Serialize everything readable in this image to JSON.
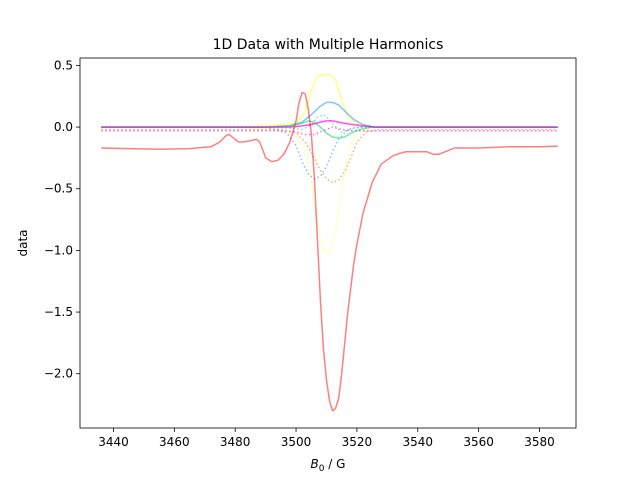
{
  "chart_data": {
    "type": "line",
    "title": "1D Data with Multiple Harmonics",
    "xlabel_symbol": "B",
    "xlabel_subscript": "0",
    "xlabel_unit": " / G",
    "ylabel": "data",
    "xlim": [
      3429,
      3592
    ],
    "ylim": [
      -2.44,
      0.56
    ],
    "xticks": [
      3440,
      3460,
      3480,
      3500,
      3520,
      3540,
      3560,
      3580
    ],
    "yticks": [
      -2.0,
      -1.5,
      -1.0,
      -0.5,
      0.0,
      0.5
    ],
    "ytick_labels": [
      "−2.0",
      "−1.5",
      "−1.0",
      "−0.5",
      "0.0",
      "0.5"
    ],
    "grid": false,
    "legend": "none",
    "series": [
      {
        "color": "#ffff66",
        "style": "solid",
        "opacity": 0.8,
        "x": [
          3436,
          3480,
          3490,
          3495,
          3500,
          3503,
          3505,
          3507,
          3509,
          3511,
          3513,
          3515,
          3517,
          3520,
          3525,
          3530,
          3586
        ],
        "y": [
          0.0,
          0.0,
          0.01,
          0.02,
          0.03,
          0.12,
          0.3,
          0.41,
          0.42,
          0.43,
          0.38,
          0.22,
          0.08,
          0.02,
          0.0,
          0.0,
          0.0
        ]
      },
      {
        "color": "#ffff66",
        "style": "dotted",
        "opacity": 0.8,
        "x": [
          3436,
          3480,
          3495,
          3500,
          3503,
          3505,
          3507,
          3509,
          3511,
          3513,
          3515,
          3518,
          3520,
          3525,
          3586
        ],
        "y": [
          0.0,
          0.0,
          -0.02,
          -0.08,
          -0.2,
          -0.45,
          -0.8,
          -1.0,
          -1.02,
          -0.85,
          -0.5,
          -0.15,
          -0.05,
          0.0,
          0.0
        ]
      },
      {
        "color": "#3399ff",
        "style": "solid",
        "opacity": 0.6,
        "x": [
          3436,
          3490,
          3498,
          3502,
          3505,
          3508,
          3510,
          3512,
          3514,
          3516,
          3519,
          3522,
          3526,
          3530,
          3586
        ],
        "y": [
          0.0,
          0.0,
          0.01,
          0.04,
          0.1,
          0.17,
          0.2,
          0.2,
          0.18,
          0.13,
          0.06,
          0.02,
          0.0,
          0.0,
          0.0
        ]
      },
      {
        "color": "#3399ff",
        "style": "dotted",
        "opacity": 0.6,
        "x": [
          3436,
          3490,
          3497,
          3500,
          3502,
          3504,
          3506,
          3508,
          3510,
          3512,
          3514,
          3517,
          3520,
          3525,
          3586
        ],
        "y": [
          0.0,
          0.0,
          -0.05,
          -0.15,
          -0.28,
          -0.38,
          -0.42,
          -0.4,
          -0.32,
          -0.2,
          -0.1,
          -0.02,
          0.0,
          0.0,
          0.0
        ]
      },
      {
        "color": "#00dd55",
        "style": "solid",
        "opacity": 0.55,
        "x": [
          3436,
          3490,
          3498,
          3502,
          3504,
          3506,
          3508,
          3510,
          3512,
          3514,
          3516,
          3518,
          3521,
          3525,
          3530,
          3586
        ],
        "y": [
          0.0,
          0.0,
          0.01,
          0.03,
          0.05,
          0.04,
          0.0,
          -0.05,
          -0.08,
          -0.09,
          -0.08,
          -0.05,
          -0.02,
          0.0,
          0.0,
          0.0
        ]
      },
      {
        "color": "#00dd55",
        "style": "dotted",
        "opacity": 0.55,
        "x": [
          3436,
          3490,
          3498,
          3502,
          3505,
          3507,
          3509,
          3511,
          3513,
          3515,
          3518,
          3521,
          3525,
          3586
        ],
        "y": [
          0.0,
          0.0,
          -0.01,
          -0.02,
          0.02,
          0.08,
          0.1,
          0.06,
          0.0,
          -0.04,
          -0.02,
          0.0,
          0.0,
          0.0
        ]
      },
      {
        "color": "#ff7700",
        "style": "dotted",
        "opacity": 0.6,
        "x": [
          3436,
          3495,
          3500,
          3503,
          3506,
          3508,
          3510,
          3512,
          3514,
          3516,
          3518,
          3520,
          3523,
          3527,
          3586
        ],
        "y": [
          -0.02,
          -0.02,
          -0.05,
          -0.12,
          -0.25,
          -0.35,
          -0.42,
          -0.45,
          -0.43,
          -0.36,
          -0.25,
          -0.12,
          -0.04,
          -0.02,
          -0.02
        ]
      },
      {
        "color": "#ff00ff",
        "style": "solid",
        "opacity": 0.7,
        "x": [
          3436,
          3490,
          3498,
          3502,
          3505,
          3508,
          3510,
          3512,
          3514,
          3516,
          3519,
          3522,
          3526,
          3530,
          3586
        ],
        "y": [
          0.0,
          0.0,
          0.0,
          0.01,
          0.02,
          0.04,
          0.05,
          0.05,
          0.04,
          0.03,
          0.02,
          0.01,
          0.0,
          0.0,
          0.0
        ]
      },
      {
        "color": "#ff00ff",
        "style": "dotted",
        "opacity": 0.6,
        "x": [
          3436,
          3490,
          3496,
          3500,
          3503,
          3506,
          3509,
          3512,
          3515,
          3518,
          3521,
          3525,
          3586
        ],
        "y": [
          -0.03,
          -0.03,
          -0.03,
          -0.04,
          -0.06,
          -0.06,
          -0.03,
          0.0,
          -0.02,
          -0.03,
          -0.03,
          -0.03,
          -0.03
        ]
      },
      {
        "color": "#ff0000",
        "style": "solid",
        "opacity": 0.5,
        "x": [
          3436,
          3445,
          3455,
          3465,
          3472,
          3475,
          3477,
          3478,
          3479,
          3481,
          3483,
          3485,
          3487,
          3488,
          3489,
          3490,
          3492,
          3494,
          3496,
          3498,
          3500,
          3501,
          3502,
          3503,
          3504,
          3505,
          3506,
          3507,
          3508,
          3509,
          3510,
          3511,
          3512,
          3513,
          3514,
          3515,
          3516,
          3517,
          3518,
          3519,
          3520,
          3522,
          3525,
          3528,
          3532,
          3536,
          3540,
          3543,
          3545,
          3547,
          3552,
          3560,
          3570,
          3580,
          3586
        ],
        "y": [
          -0.17,
          -0.175,
          -0.18,
          -0.175,
          -0.16,
          -0.12,
          -0.07,
          -0.06,
          -0.08,
          -0.12,
          -0.12,
          -0.11,
          -0.1,
          -0.12,
          -0.18,
          -0.25,
          -0.28,
          -0.27,
          -0.22,
          -0.12,
          0.05,
          0.2,
          0.28,
          0.27,
          0.15,
          -0.05,
          -0.4,
          -0.9,
          -1.4,
          -1.8,
          -2.05,
          -2.22,
          -2.3,
          -2.28,
          -2.2,
          -2.0,
          -1.75,
          -1.5,
          -1.3,
          -1.1,
          -0.95,
          -0.7,
          -0.45,
          -0.3,
          -0.23,
          -0.2,
          -0.2,
          -0.2,
          -0.22,
          -0.22,
          -0.17,
          -0.17,
          -0.16,
          -0.16,
          -0.155
        ]
      }
    ]
  }
}
